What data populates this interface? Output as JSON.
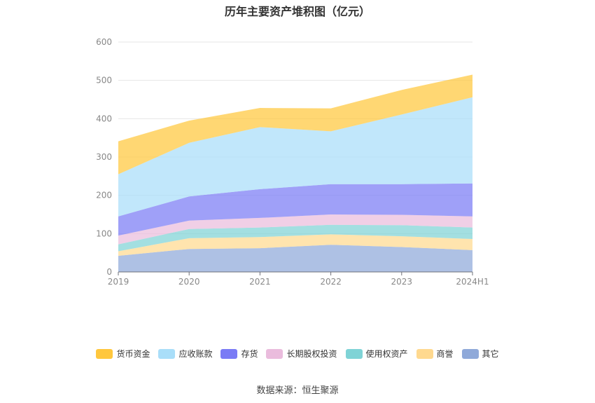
{
  "chart_data": {
    "type": "area",
    "stacked": true,
    "title": "历年主要资产堆积图（亿元）",
    "categories": [
      "2019",
      "2020",
      "2021",
      "2022",
      "2023",
      "2024H1"
    ],
    "yticks": [
      "0",
      "100",
      "200",
      "300",
      "400",
      "500",
      "600"
    ],
    "ylim": [
      0,
      600
    ],
    "grid": true,
    "legend_position": "bottom",
    "series": [
      {
        "name": "其它",
        "color": "#8FA9D9",
        "values": [
          42,
          60,
          62,
          71,
          65,
          57
        ]
      },
      {
        "name": "商誉",
        "color": "#FFD98F",
        "values": [
          12,
          28,
          29,
          27,
          28,
          29
        ]
      },
      {
        "name": "使用权资产",
        "color": "#7FD3D6",
        "values": [
          18,
          24,
          25,
          25,
          29,
          30
        ]
      },
      {
        "name": "长期股权投资",
        "color": "#EABCDD",
        "values": [
          23,
          22,
          25,
          27,
          27,
          29
        ]
      },
      {
        "name": "存货",
        "color": "#7A7BF5",
        "values": [
          50,
          63,
          75,
          79,
          80,
          86
        ]
      },
      {
        "name": "应收账款",
        "color": "#A9DEF9",
        "values": [
          110,
          140,
          162,
          138,
          182,
          225
        ]
      },
      {
        "name": "货币资金",
        "color": "#FFC73D",
        "values": [
          86,
          58,
          50,
          60,
          64,
          59
        ]
      }
    ]
  },
  "legend_order": [
    "货币资金",
    "应收账款",
    "存货",
    "长期股权投资",
    "使用权资产",
    "商誉",
    "其它"
  ],
  "source": "数据来源：恒生聚源"
}
